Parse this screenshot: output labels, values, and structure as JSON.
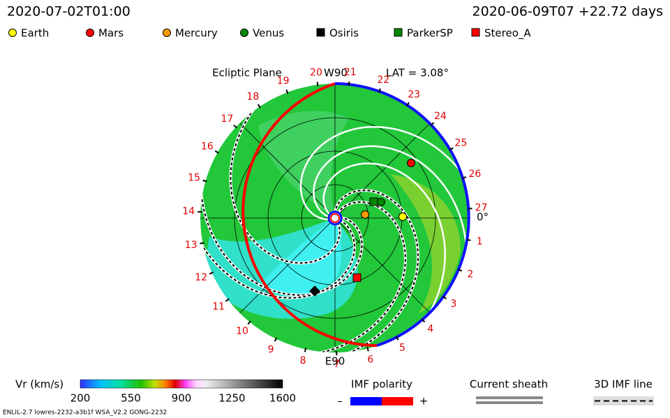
{
  "header": {
    "left": "2020-07-02T01:00",
    "right": "2020-06-09T07 +22.72 days"
  },
  "legend": [
    "Earth",
    "Mars",
    "Mercury",
    "Venus",
    "Osiris",
    "ParkerSP",
    "Stereo_A"
  ],
  "plot": {
    "title": "Ecliptic Plane",
    "top_label": "W90",
    "lat": "LAT = 3.08°",
    "bottom_label": "E90",
    "zero_label": "0°",
    "rotation_labels": [
      "27",
      "1",
      "2",
      "3",
      "4",
      "5",
      "6",
      "7",
      "8",
      "9",
      "10",
      "11",
      "12",
      "13",
      "14",
      "15",
      "16",
      "17",
      "18",
      "19",
      "20",
      "21",
      "22",
      "23",
      "24",
      "25",
      "26"
    ]
  },
  "colorbar": {
    "label": "Vr (km/s)",
    "ticks": [
      "200",
      "550",
      "900",
      "1250",
      "1600"
    ]
  },
  "imf": {
    "title": "IMF polarity",
    "minus": "–",
    "plus": "+"
  },
  "sheath": {
    "title": "Current sheath"
  },
  "imf3d": {
    "title": "3D IMF line"
  },
  "footer": "ENLIL-2.7 lowres-2232-a3b1f WSA_V2.2 GONG-2232"
}
